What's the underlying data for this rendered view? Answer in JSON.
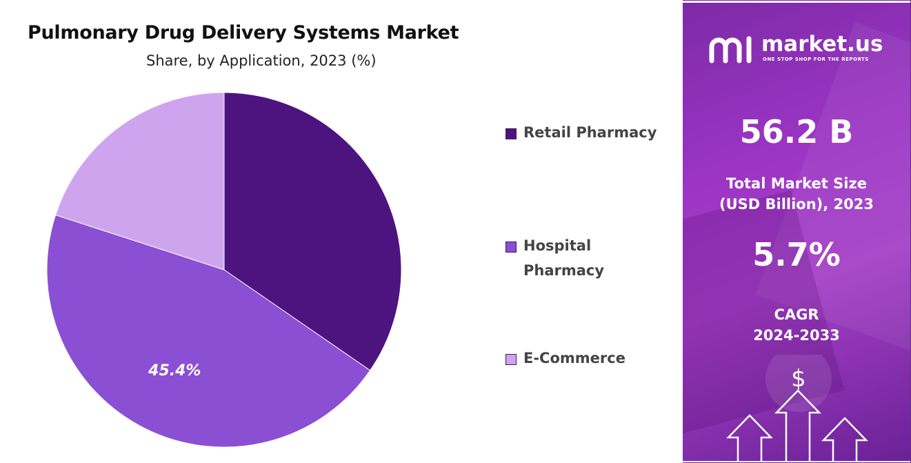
{
  "header": {
    "title": "Pulmonary Drug Delivery Systems Market",
    "subtitle": "Share, by Application, 2023 (%)"
  },
  "chart_data": {
    "type": "pie",
    "title": "Pulmonary Drug Delivery Systems Market",
    "subtitle": "Share, by Application, 2023 (%)",
    "legend_position": "right",
    "slices": [
      {
        "name": "Retail Pharmacy",
        "value": 34.6,
        "color": "#4d1480",
        "label": ""
      },
      {
        "name": "Hospital Pharmacy",
        "value": 45.4,
        "color": "#8a4fd3",
        "label": "45.4%"
      },
      {
        "name": "E-Commerce",
        "value": 20.0,
        "color": "#cfa4ef",
        "label": ""
      }
    ]
  },
  "legend": {
    "items": [
      {
        "label": "Retail Pharmacy",
        "color": "#4d1480"
      },
      {
        "label": "Hospital Pharmacy",
        "color": "#8a4fd3"
      },
      {
        "label": "E-Commerce",
        "color": "#cfa4ef"
      }
    ]
  },
  "sidebar": {
    "brand": "market.us",
    "tagline": "ONE STOP SHOP FOR THE REPORTS",
    "market_size_value": "56.2 B",
    "market_size_label_line1": "Total Market Size",
    "market_size_label_line2": "(USD Billion), 2023",
    "cagr_value": "5.7%",
    "cagr_label_line1": "CAGR",
    "cagr_label_line2": "2024-2033",
    "dollar_symbol": "$",
    "background_color": "#9c35c4"
  }
}
